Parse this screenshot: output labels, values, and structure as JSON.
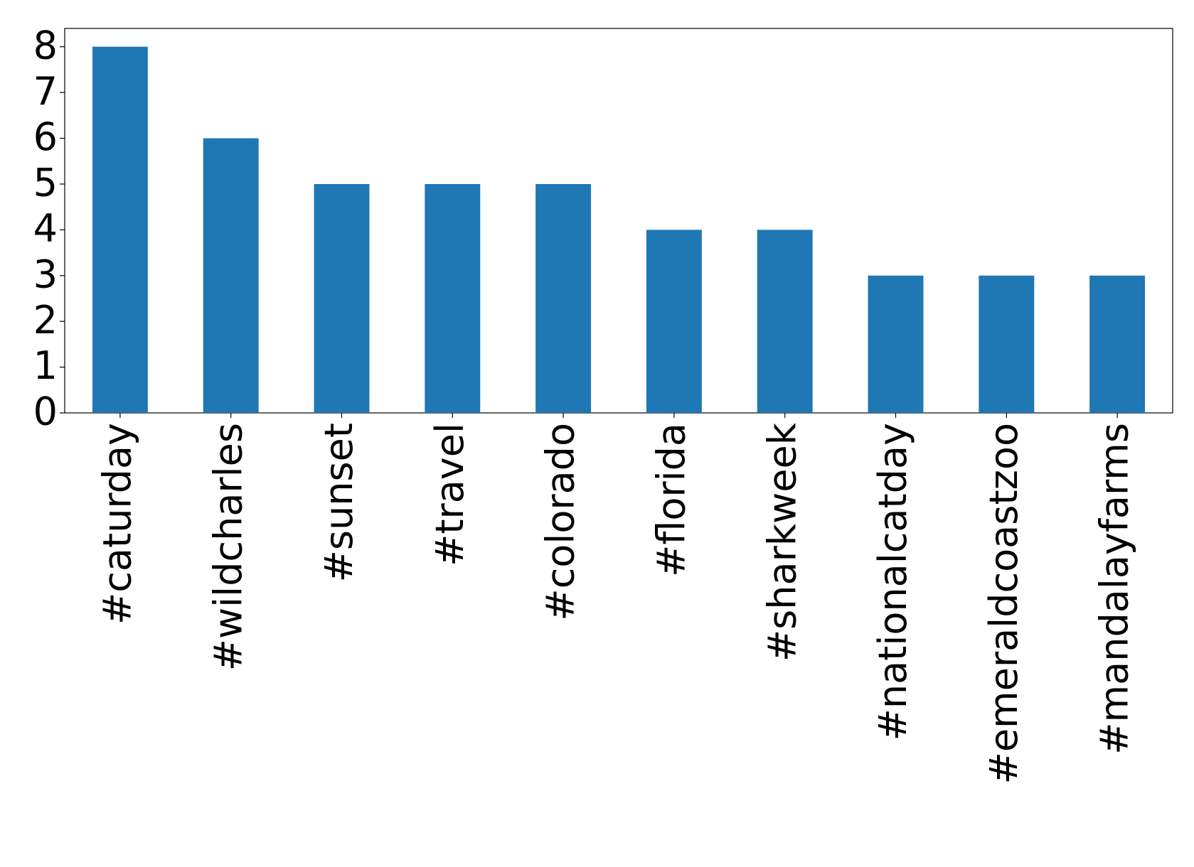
{
  "chart_data": {
    "type": "bar",
    "categories": [
      "#caturday",
      "#wildcharles",
      "#sunset",
      "#travel",
      "#colorado",
      "#florida",
      "#sharkweek",
      "#nationalcatday",
      "#emeraldcoastzoo",
      "#mandalayfarms"
    ],
    "values": [
      8,
      6,
      5,
      5,
      5,
      4,
      4,
      3,
      3,
      3
    ],
    "color": "#1f77b4",
    "ylim": [
      0,
      8.4
    ],
    "yticks": [
      0,
      1,
      2,
      3,
      4,
      5,
      6,
      7,
      8
    ],
    "grid": false
  }
}
